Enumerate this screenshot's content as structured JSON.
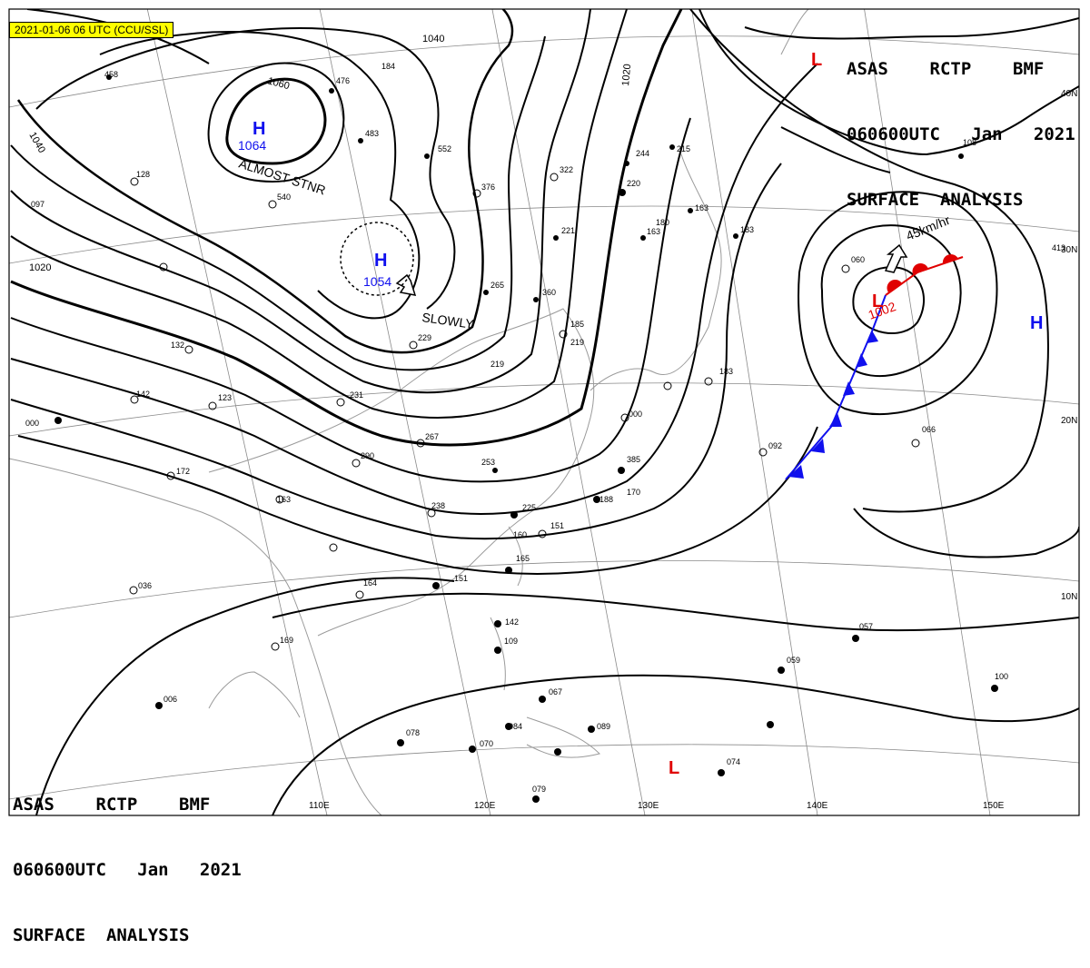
{
  "timestamp": "2021-01-06 06 UTC (CCU/SSL)",
  "title_block": {
    "line1": "ASAS    RCTP    BMF",
    "line2": "060600UTC   Jan   2021",
    "line3": "SURFACE  ANALYSIS"
  },
  "colors": {
    "high": "#1010ee",
    "low": "#e00000",
    "isobar": "#000000",
    "grid": "#888888",
    "coast": "#9a9a9a"
  },
  "longitude_labels": [
    "110E",
    "120E",
    "130E",
    "140E",
    "150E"
  ],
  "latitude_labels": [
    "40N",
    "30N",
    "20N",
    "10N"
  ],
  "isobar_labels": [
    "1060",
    "1040",
    "1020",
    "1040",
    "1020"
  ],
  "pressure_centers": [
    {
      "type": "H",
      "value": "1064",
      "note": "ALMOST STNR"
    },
    {
      "type": "H",
      "value": "1054",
      "note": "SLOWLY"
    },
    {
      "type": "L",
      "value": "1002",
      "note": "45km/hr"
    },
    {
      "type": "H",
      "value": ""
    },
    {
      "type": "L",
      "value": ""
    },
    {
      "type": "L",
      "value": ""
    }
  ],
  "station_values": [
    "458",
    "476",
    "483",
    "540",
    "552",
    "376",
    "322",
    "244",
    "220",
    "215",
    "163",
    "163",
    "221",
    "183",
    "265",
    "360",
    "185",
    "219",
    "219",
    "229",
    "231",
    "267",
    "290",
    "253",
    "238",
    "225",
    "188",
    "170",
    "151",
    "160",
    "165",
    "151",
    "164",
    "169",
    "142",
    "109",
    "067",
    "084",
    "089",
    "078",
    "070",
    "079",
    "074",
    "059",
    "057",
    "100",
    "092",
    "066",
    "060",
    "108",
    "142",
    "000",
    "172",
    "036",
    "006",
    "132",
    "123",
    "128",
    "097",
    "163",
    "385",
    "413",
    "000",
    "180",
    "183",
    "184"
  ],
  "icons": [
    "high-pressure-icon",
    "low-pressure-icon",
    "cold-front-triangle-icon",
    "warm-front-semicircle-icon",
    "movement-arrow-icon",
    "station-model-icon"
  ]
}
